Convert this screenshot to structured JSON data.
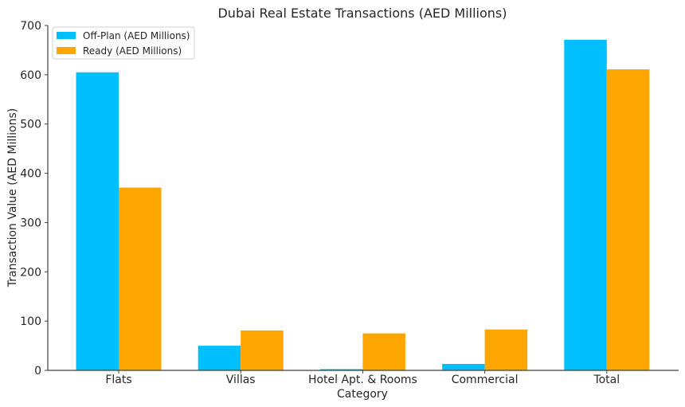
{
  "chart_data": {
    "type": "bar",
    "title": "Dubai Real Estate Transactions (AED Millions)",
    "xlabel": "Category",
    "ylabel": "Transaction Value (AED Millions)",
    "categories": [
      "Flats",
      "Villas",
      "Hotel Apt. & Rooms",
      "Commercial",
      "Total"
    ],
    "series": [
      {
        "name": "Off-Plan (AED Millions)",
        "color": "#00BFFF",
        "values": [
          605,
          50,
          2.5,
          13,
          671
        ]
      },
      {
        "name": "Ready (AED Millions)",
        "color": "#FFA500",
        "values": [
          371,
          81,
          75,
          83,
          611
        ]
      }
    ],
    "ylim": [
      0,
      700
    ],
    "yticks": [
      0,
      100,
      200,
      300,
      400,
      500,
      600,
      700
    ],
    "ytick_labels": [
      "0",
      "100",
      "200",
      "300",
      "400",
      "500",
      "600",
      "700"
    ],
    "grid": false,
    "legend_position": "top-left"
  }
}
